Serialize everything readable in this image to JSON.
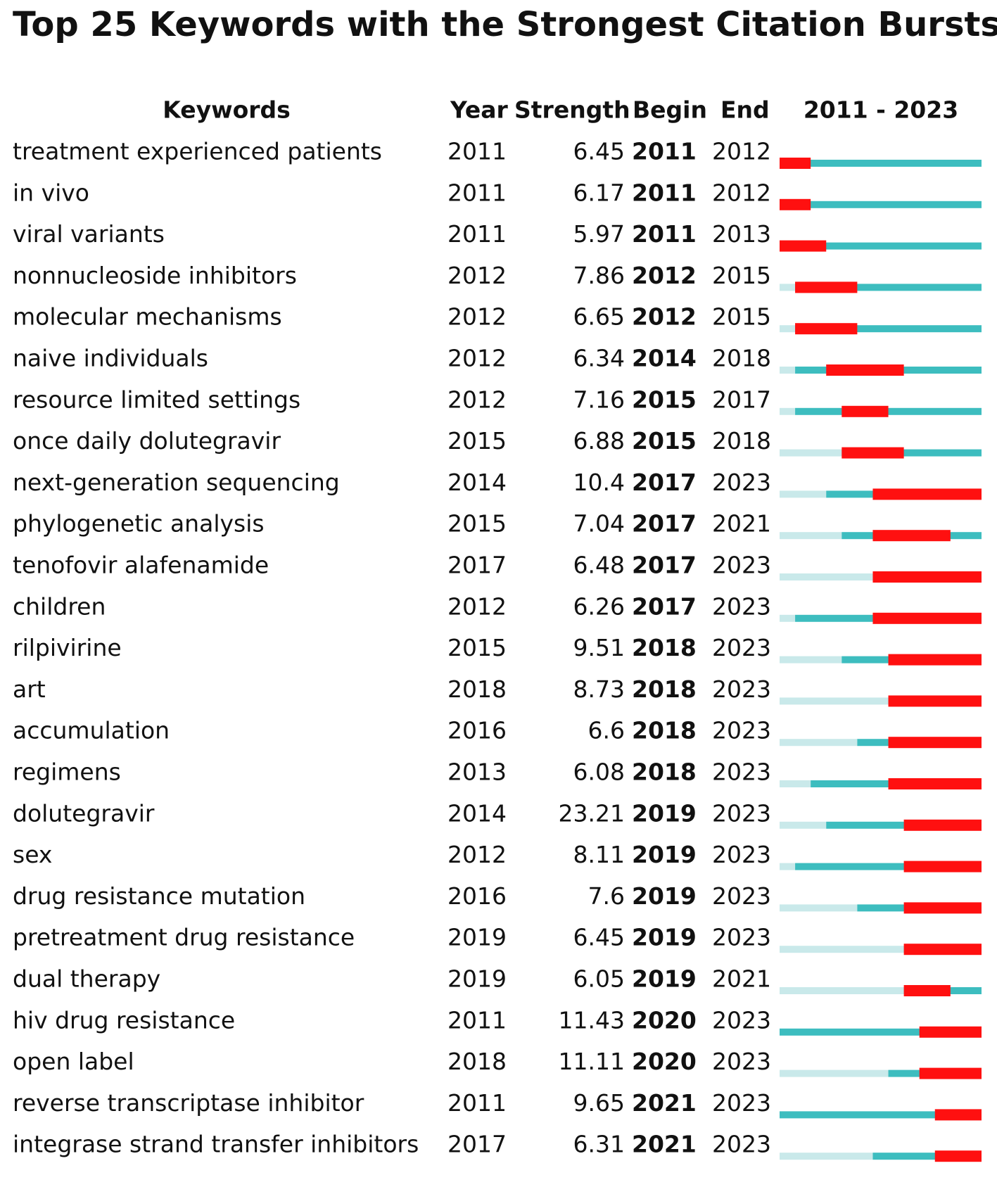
{
  "title": "Top 25 Keywords with the Strongest Citation Bursts",
  "table": {
    "header": {
      "keywords": "Keywords",
      "year": "Year",
      "strength": "Strength",
      "begin": "Begin",
      "end": "End",
      "timeline": "2011 - 2023"
    },
    "timeline_range": [
      2011,
      2023
    ],
    "colors": {
      "before": "#c9e9ea",
      "active": "#3dbdbf",
      "burst": "#ff1010"
    },
    "rows": [
      {
        "keyword": "treatment experienced patients",
        "year": 2011,
        "strength": 6.45,
        "begin": 2011,
        "end": 2012
      },
      {
        "keyword": "in vivo",
        "year": 2011,
        "strength": 6.17,
        "begin": 2011,
        "end": 2012
      },
      {
        "keyword": "viral variants",
        "year": 2011,
        "strength": 5.97,
        "begin": 2011,
        "end": 2013
      },
      {
        "keyword": "nonnucleoside inhibitors",
        "year": 2012,
        "strength": 7.86,
        "begin": 2012,
        "end": 2015
      },
      {
        "keyword": "molecular mechanisms",
        "year": 2012,
        "strength": 6.65,
        "begin": 2012,
        "end": 2015
      },
      {
        "keyword": "naive individuals",
        "year": 2012,
        "strength": 6.34,
        "begin": 2014,
        "end": 2018
      },
      {
        "keyword": "resource limited settings",
        "year": 2012,
        "strength": 7.16,
        "begin": 2015,
        "end": 2017
      },
      {
        "keyword": "once daily dolutegravir",
        "year": 2015,
        "strength": 6.88,
        "begin": 2015,
        "end": 2018
      },
      {
        "keyword": "next-generation sequencing",
        "year": 2014,
        "strength": 10.4,
        "begin": 2017,
        "end": 2023
      },
      {
        "keyword": "phylogenetic analysis",
        "year": 2015,
        "strength": 7.04,
        "begin": 2017,
        "end": 2021
      },
      {
        "keyword": "tenofovir alafenamide",
        "year": 2017,
        "strength": 6.48,
        "begin": 2017,
        "end": 2023
      },
      {
        "keyword": "children",
        "year": 2012,
        "strength": 6.26,
        "begin": 2017,
        "end": 2023
      },
      {
        "keyword": "rilpivirine",
        "year": 2015,
        "strength": 9.51,
        "begin": 2018,
        "end": 2023
      },
      {
        "keyword": "art",
        "year": 2018,
        "strength": 8.73,
        "begin": 2018,
        "end": 2023
      },
      {
        "keyword": "accumulation",
        "year": 2016,
        "strength": 6.6,
        "begin": 2018,
        "end": 2023
      },
      {
        "keyword": "regimens",
        "year": 2013,
        "strength": 6.08,
        "begin": 2018,
        "end": 2023
      },
      {
        "keyword": "dolutegravir",
        "year": 2014,
        "strength": 23.21,
        "begin": 2019,
        "end": 2023
      },
      {
        "keyword": "sex",
        "year": 2012,
        "strength": 8.11,
        "begin": 2019,
        "end": 2023
      },
      {
        "keyword": "drug resistance mutation",
        "year": 2016,
        "strength": 7.6,
        "begin": 2019,
        "end": 2023
      },
      {
        "keyword": "pretreatment drug resistance",
        "year": 2019,
        "strength": 6.45,
        "begin": 2019,
        "end": 2023
      },
      {
        "keyword": "dual therapy",
        "year": 2019,
        "strength": 6.05,
        "begin": 2019,
        "end": 2021
      },
      {
        "keyword": "hiv drug resistance",
        "year": 2011,
        "strength": 11.43,
        "begin": 2020,
        "end": 2023
      },
      {
        "keyword": "open label",
        "year": 2018,
        "strength": 11.11,
        "begin": 2020,
        "end": 2023
      },
      {
        "keyword": "reverse transcriptase inhibitor",
        "year": 2011,
        "strength": 9.65,
        "begin": 2021,
        "end": 2023
      },
      {
        "keyword": "integrase strand transfer inhibitors",
        "year": 2017,
        "strength": 6.31,
        "begin": 2021,
        "end": 2023
      }
    ]
  }
}
